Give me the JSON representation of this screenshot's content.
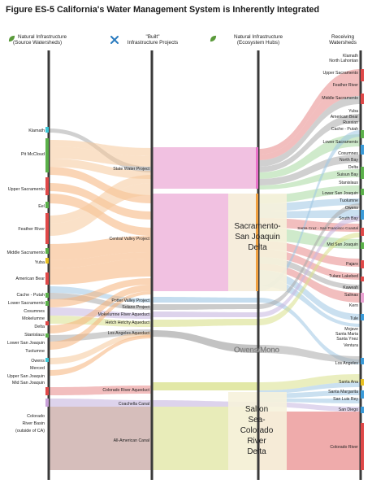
{
  "title": "Figure ES-5 California's Water Management System is Inherently Integrated",
  "columns": {
    "source": {
      "line1": "Natural Infrastructure",
      "line2": "(Source Watersheds)",
      "icon": "leaf-icon"
    },
    "built": {
      "line1": "\"Built\"",
      "line2": "Infrastructure Projects",
      "icon": "tools-icon"
    },
    "hubs": {
      "line1": "Natural Infrastructure",
      "line2": "(Ecosystem Hubs)",
      "icon": "leaf-icon"
    },
    "receiving": {
      "line1": "Receiving",
      "line2": "Watersheds"
    }
  },
  "colors": {
    "axis": "#3a3a3a",
    "svp": "#f5c89a",
    "cvp": "#f5b27a",
    "cvp_band": "#eeb6dc",
    "gray": "#a9a9a9",
    "blue": "#9ec6e4",
    "green": "#a8d9a0",
    "red": "#e88888",
    "lavender": "#c6b6e0",
    "yellowgreen": "#d8e08a",
    "mauve": "#c8a8a4",
    "hub_box": "#f6f2dc"
  },
  "sources": [
    "Klamath",
    "Pit McCloud",
    "Upper Sacramento",
    "Eel",
    "Feather River",
    "Middle Sacramento",
    "Yuba",
    "American Bear",
    "Cache - Putah",
    "Lower Sacramento",
    "Cosumnes",
    "Mokelumne",
    "Delta",
    "Stanislaus",
    "Lower San Joaquin",
    "Tuolumne",
    "Owens",
    "Merced",
    "Upper San Joaquin",
    "Mid San Joaquin"
  ],
  "colorado_source": {
    "line1": "Colorado",
    "line2": "River Basin",
    "line3": "(outside of CA)"
  },
  "projects": [
    "State Water Project",
    "Central Valley Project",
    "Potter Valley Project",
    "Solano Project",
    "Mokelumne River Aqueduct",
    "Hetch Hetchy Aqueduct",
    "Los Angeles Aqueduct",
    "Colorado River Aqueduct",
    "Coachella Canal",
    "All-American Canal"
  ],
  "hubs": {
    "delta": {
      "line1": "Sacramento-",
      "line2": "San Joaquin",
      "line3": "Delta"
    },
    "owens": "Owens/Mono",
    "salton": {
      "line1": "Salton",
      "line2": "Sea-",
      "line3": "Colorado",
      "line4": "River",
      "line5": "Delta"
    }
  },
  "receiving": [
    "Klamath",
    "North Lahontan",
    "Upper Sacramento",
    "Feather River",
    "Middle Sacramento",
    "Yuba",
    "American Bear",
    "Russian",
    "Cache - Putah",
    "Lower Sacramento",
    "Cosumnes",
    "North Bay",
    "Delta",
    "Suisun Bay",
    "Stanislaus",
    "Lower San Joaquin",
    "Tuolumne",
    "Owens",
    "South Bay",
    "Santa Cruz - San Francisco Coastal",
    "Mid San Joaquin",
    "Pajaro",
    "Tulare Lakebed",
    "Kaweah",
    "Salinas",
    "Kern",
    "Tule",
    "Mojave",
    "Santa Maria",
    "Santa Ynez",
    "Ventura",
    "Los Angeles",
    "Santa Ana",
    "Santa Margarita",
    "San Luis Rey",
    "San Diego",
    "Colorado River"
  ]
}
